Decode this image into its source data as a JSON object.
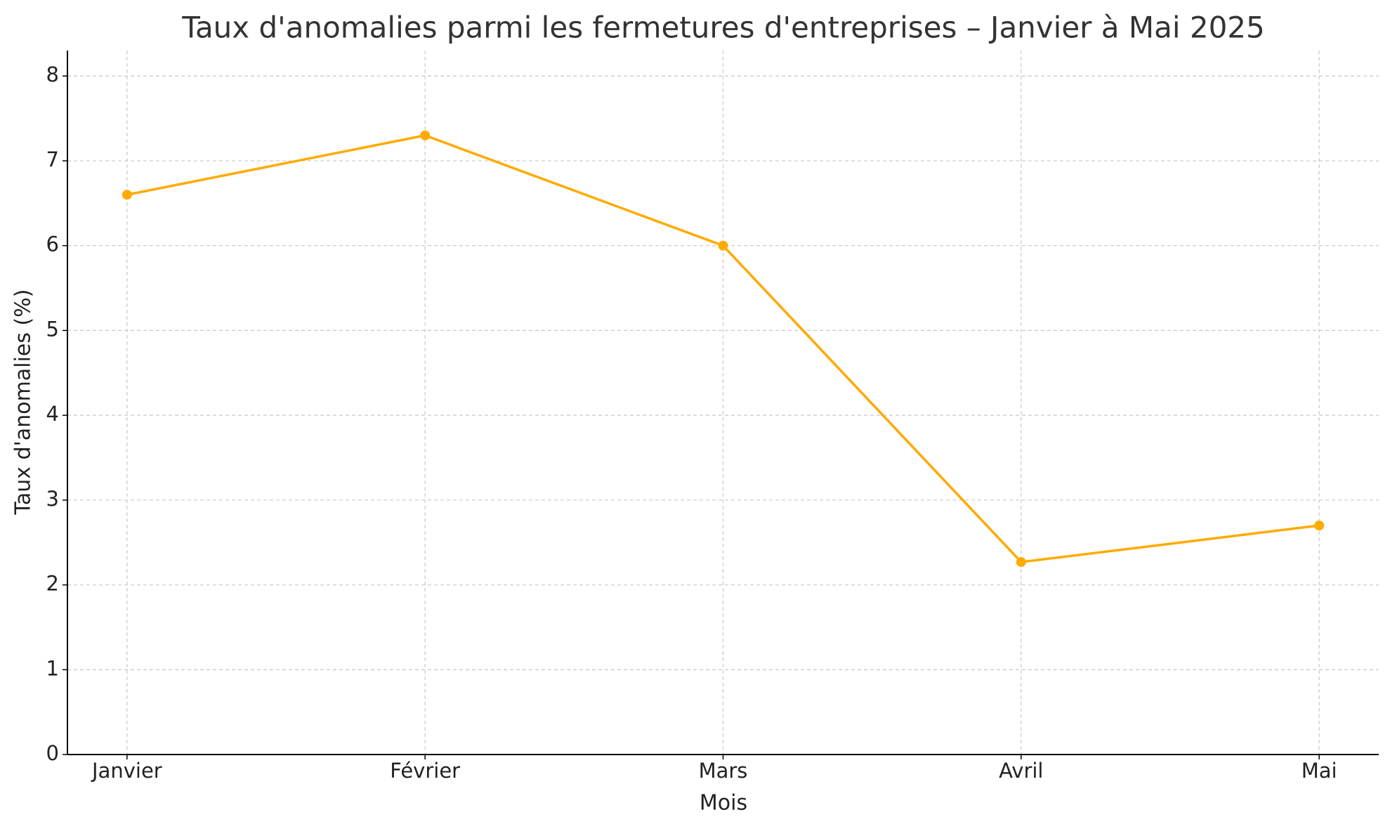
{
  "chart_data": {
    "type": "line",
    "title": "Taux d'anomalies parmi les fermetures d'entreprises – Janvier à Mai 2025",
    "x_label": "Mois",
    "y_label": "Taux d'anomalies (%)",
    "categories": [
      "Janvier",
      "Février",
      "Mars",
      "Avril",
      "Mai"
    ],
    "series": [
      {
        "name": "Taux d'anomalies",
        "color": "#ffaa00",
        "values": [
          6.6,
          7.3,
          6.0,
          2.27,
          2.7
        ]
      }
    ],
    "ylim": [
      0,
      8.3
    ],
    "yticks": [
      0,
      1,
      2,
      3,
      4,
      5,
      6,
      7,
      8
    ],
    "grid": true
  }
}
